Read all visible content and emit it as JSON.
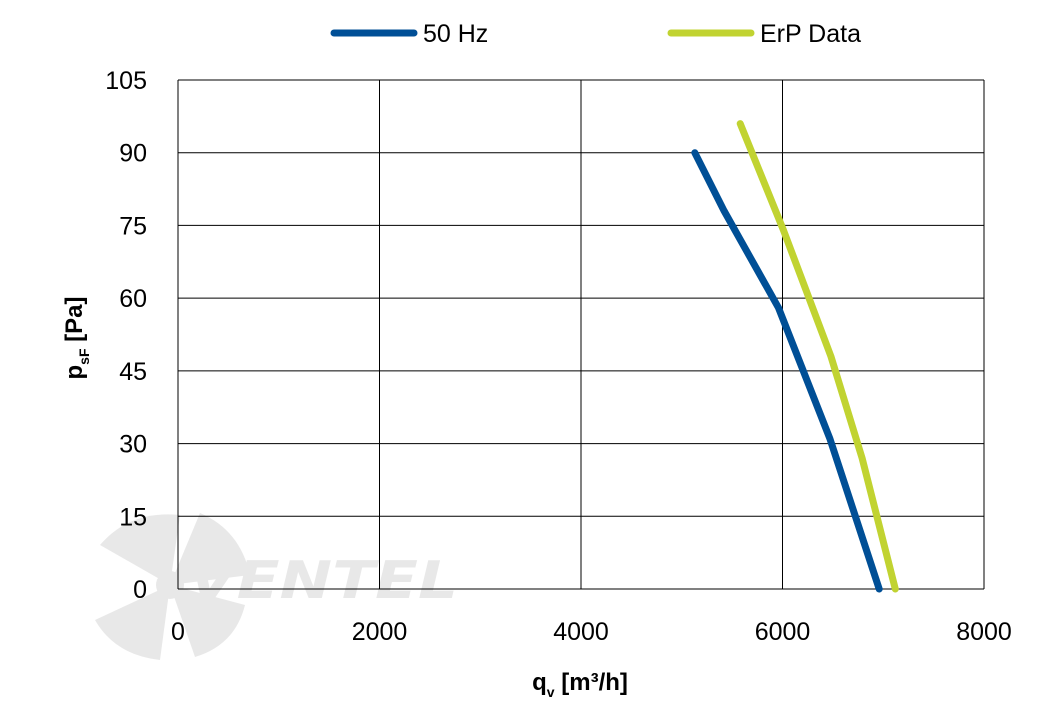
{
  "chart_data": {
    "type": "line",
    "xlabel": {
      "main": "q",
      "sub": "v",
      "rest": " [m³/h]"
    },
    "ylabel": {
      "main": "p",
      "sub": "sF",
      "rest": " [Pa]"
    },
    "xlim": [
      0,
      8000
    ],
    "ylim": [
      0,
      105
    ],
    "xticks": [
      0,
      2000,
      4000,
      6000,
      8000
    ],
    "yticks": [
      0,
      15,
      30,
      45,
      60,
      75,
      90,
      105
    ],
    "xtick_labels": [
      "0",
      "2000",
      "4000",
      "6000",
      "8000"
    ],
    "ytick_labels": [
      "0",
      "15",
      "30",
      "45",
      "60",
      "75",
      "90",
      "105"
    ],
    "grid": true,
    "legend_position": "top-center",
    "series": [
      {
        "name": "50 Hz",
        "color": "#004f96",
        "x": [
          5130,
          5420,
          5960,
          6470,
          6960
        ],
        "y": [
          90,
          78,
          58,
          31,
          0
        ]
      },
      {
        "name": "ErP Data",
        "color": "#c1d331",
        "x": [
          5580,
          6010,
          6480,
          6790,
          7120
        ],
        "y": [
          96,
          74,
          48,
          27,
          0
        ]
      }
    ],
    "watermark": {
      "text": "VENTEL",
      "icon": "fan-logo-icon"
    }
  }
}
